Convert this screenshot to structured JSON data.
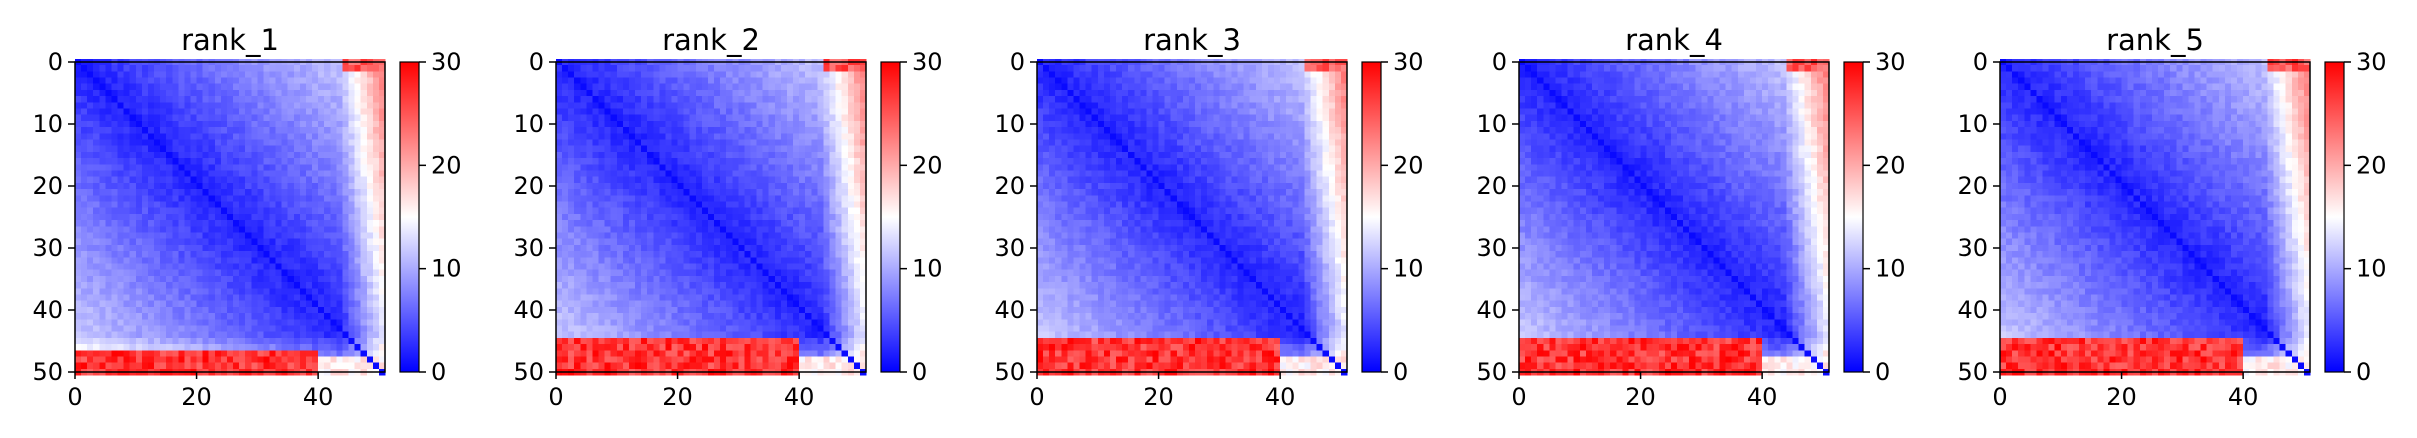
{
  "chart_data": [
    {
      "type": "heatmap",
      "title": "rank_1",
      "size": 51,
      "xlim": [
        0,
        51
      ],
      "ylim": [
        50,
        0
      ],
      "xticks": [
        0,
        20,
        40
      ],
      "yticks": [
        0,
        10,
        20,
        30,
        40,
        50
      ],
      "colorbar": {
        "min": 0,
        "max": 30,
        "ticks": [
          0,
          10,
          20,
          30
        ],
        "colormap": "bwr"
      },
      "red_band_rows": 4
    },
    {
      "type": "heatmap",
      "title": "rank_2",
      "size": 51,
      "xlim": [
        0,
        51
      ],
      "ylim": [
        50,
        0
      ],
      "xticks": [
        0,
        20,
        40
      ],
      "yticks": [
        0,
        10,
        20,
        30,
        40,
        50
      ],
      "colorbar": {
        "min": 0,
        "max": 30,
        "ticks": [
          0,
          10,
          20,
          30
        ],
        "colormap": "bwr"
      },
      "red_band_rows": 6
    },
    {
      "type": "heatmap",
      "title": "rank_3",
      "size": 51,
      "xlim": [
        0,
        51
      ],
      "ylim": [
        50,
        0
      ],
      "xticks": [
        0,
        20,
        40
      ],
      "yticks": [
        0,
        10,
        20,
        30,
        40,
        50
      ],
      "colorbar": {
        "min": 0,
        "max": 30,
        "ticks": [
          0,
          10,
          20,
          30
        ],
        "colormap": "bwr"
      },
      "red_band_rows": 6
    },
    {
      "type": "heatmap",
      "title": "rank_4",
      "size": 51,
      "xlim": [
        0,
        51
      ],
      "ylim": [
        50,
        0
      ],
      "xticks": [
        0,
        20,
        40
      ],
      "yticks": [
        0,
        10,
        20,
        30,
        40,
        50
      ],
      "colorbar": {
        "min": 0,
        "max": 30,
        "ticks": [
          0,
          10,
          20,
          30
        ],
        "colormap": "bwr"
      },
      "red_band_rows": 6
    },
    {
      "type": "heatmap",
      "title": "rank_5",
      "size": 51,
      "xlim": [
        0,
        51
      ],
      "ylim": [
        50,
        0
      ],
      "xticks": [
        0,
        20,
        40
      ],
      "yticks": [
        0,
        10,
        20,
        30,
        40,
        50
      ],
      "colorbar": {
        "min": 0,
        "max": 30,
        "ticks": [
          0,
          10,
          20,
          30
        ],
        "colormap": "bwr"
      },
      "red_band_rows": 6
    }
  ]
}
